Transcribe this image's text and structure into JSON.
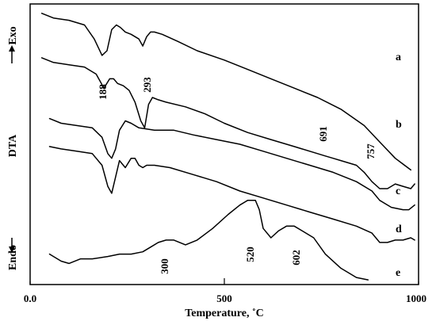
{
  "chart_data": {
    "type": "line",
    "title": "",
    "xlabel": "Temperature, ˚C",
    "ylabel": "DTA",
    "exo_label": "Exo",
    "endo_label": "Endo",
    "xlim": [
      0,
      1000
    ],
    "x_ticks": [
      0,
      500,
      1000
    ],
    "x_tick_labels": [
      "0.0",
      "500",
      "1000"
    ],
    "grid": false,
    "legend": "none",
    "series": [
      {
        "name": "a",
        "x": [
          30,
          60,
          100,
          140,
          165,
          185,
          198,
          210,
          222,
          232,
          245,
          260,
          280,
          290,
          300,
          310,
          320,
          340,
          380,
          430,
          500,
          560,
          620,
          680,
          740,
          800,
          860,
          900,
          940,
          980
        ],
        "y": [
          0.96,
          0.94,
          0.93,
          0.91,
          0.85,
          0.78,
          0.8,
          0.89,
          0.91,
          0.9,
          0.88,
          0.87,
          0.85,
          0.82,
          0.86,
          0.88,
          0.88,
          0.87,
          0.84,
          0.8,
          0.76,
          0.72,
          0.68,
          0.64,
          0.6,
          0.55,
          0.48,
          0.41,
          0.34,
          0.29
        ]
      },
      {
        "name": "b",
        "x": [
          30,
          60,
          100,
          140,
          170,
          190,
          205,
          215,
          225,
          240,
          255,
          270,
          285,
          295,
          305,
          315,
          330,
          350,
          400,
          450,
          500,
          560,
          620,
          680,
          700,
          740,
          760,
          780,
          800,
          840,
          860,
          880,
          900,
          920,
          940,
          960,
          980,
          990
        ],
        "y": [
          0.77,
          0.75,
          0.74,
          0.73,
          0.7,
          0.64,
          0.68,
          0.68,
          0.66,
          0.65,
          0.63,
          0.58,
          0.5,
          0.47,
          0.57,
          0.6,
          0.59,
          0.58,
          0.56,
          0.53,
          0.49,
          0.45,
          0.42,
          0.39,
          0.38,
          0.36,
          0.35,
          0.34,
          0.33,
          0.31,
          0.28,
          0.24,
          0.21,
          0.21,
          0.23,
          0.22,
          0.21,
          0.23
        ]
      },
      {
        "name": "c",
        "x": [
          50,
          80,
          120,
          160,
          185,
          200,
          210,
          220,
          230,
          245,
          260,
          280,
          320,
          370,
          420,
          480,
          540,
          600,
          660,
          720,
          780,
          840,
          880,
          900,
          930,
          960,
          975,
          990
        ],
        "y": [
          0.51,
          0.49,
          0.48,
          0.47,
          0.43,
          0.36,
          0.34,
          0.38,
          0.46,
          0.5,
          0.49,
          0.47,
          0.46,
          0.46,
          0.44,
          0.42,
          0.4,
          0.37,
          0.34,
          0.31,
          0.28,
          0.24,
          0.2,
          0.16,
          0.13,
          0.12,
          0.12,
          0.14
        ]
      },
      {
        "name": "d",
        "x": [
          50,
          80,
          120,
          160,
          185,
          200,
          210,
          220,
          230,
          245,
          260,
          270,
          280,
          290,
          300,
          320,
          360,
          420,
          480,
          540,
          600,
          660,
          720,
          780,
          840,
          880,
          900,
          920,
          940,
          960,
          980,
          990
        ],
        "y": [
          0.39,
          0.38,
          0.37,
          0.36,
          0.31,
          0.22,
          0.19,
          0.26,
          0.33,
          0.3,
          0.34,
          0.34,
          0.31,
          0.3,
          0.31,
          0.31,
          0.3,
          0.27,
          0.24,
          0.2,
          0.17,
          0.14,
          0.11,
          0.08,
          0.05,
          0.02,
          -0.02,
          -0.02,
          -0.01,
          -0.01,
          0.0,
          -0.01
        ]
      },
      {
        "name": "e",
        "x": [
          50,
          80,
          100,
          130,
          160,
          200,
          230,
          260,
          290,
          310,
          330,
          350,
          370,
          400,
          430,
          470,
          510,
          540,
          560,
          580,
          590,
          600,
          620,
          640,
          660,
          680,
          700,
          730,
          760,
          800,
          840,
          870
        ],
        "y": [
          -0.07,
          -0.1,
          -0.11,
          -0.09,
          -0.09,
          -0.08,
          -0.07,
          -0.07,
          -0.06,
          -0.04,
          -0.02,
          -0.01,
          -0.01,
          -0.03,
          -0.01,
          0.04,
          0.1,
          0.14,
          0.16,
          0.16,
          0.12,
          0.04,
          0.0,
          0.03,
          0.05,
          0.05,
          0.03,
          0.0,
          -0.07,
          -0.13,
          -0.17,
          -0.18
        ]
      }
    ],
    "annotations": [
      {
        "text": "188",
        "series": "b"
      },
      {
        "text": "293",
        "series": "b"
      },
      {
        "text": "691",
        "series": "b"
      },
      {
        "text": "757",
        "series": "b"
      },
      {
        "text": "300",
        "series": "e"
      },
      {
        "text": "520",
        "series": "e"
      },
      {
        "text": "602",
        "series": "e"
      }
    ]
  }
}
